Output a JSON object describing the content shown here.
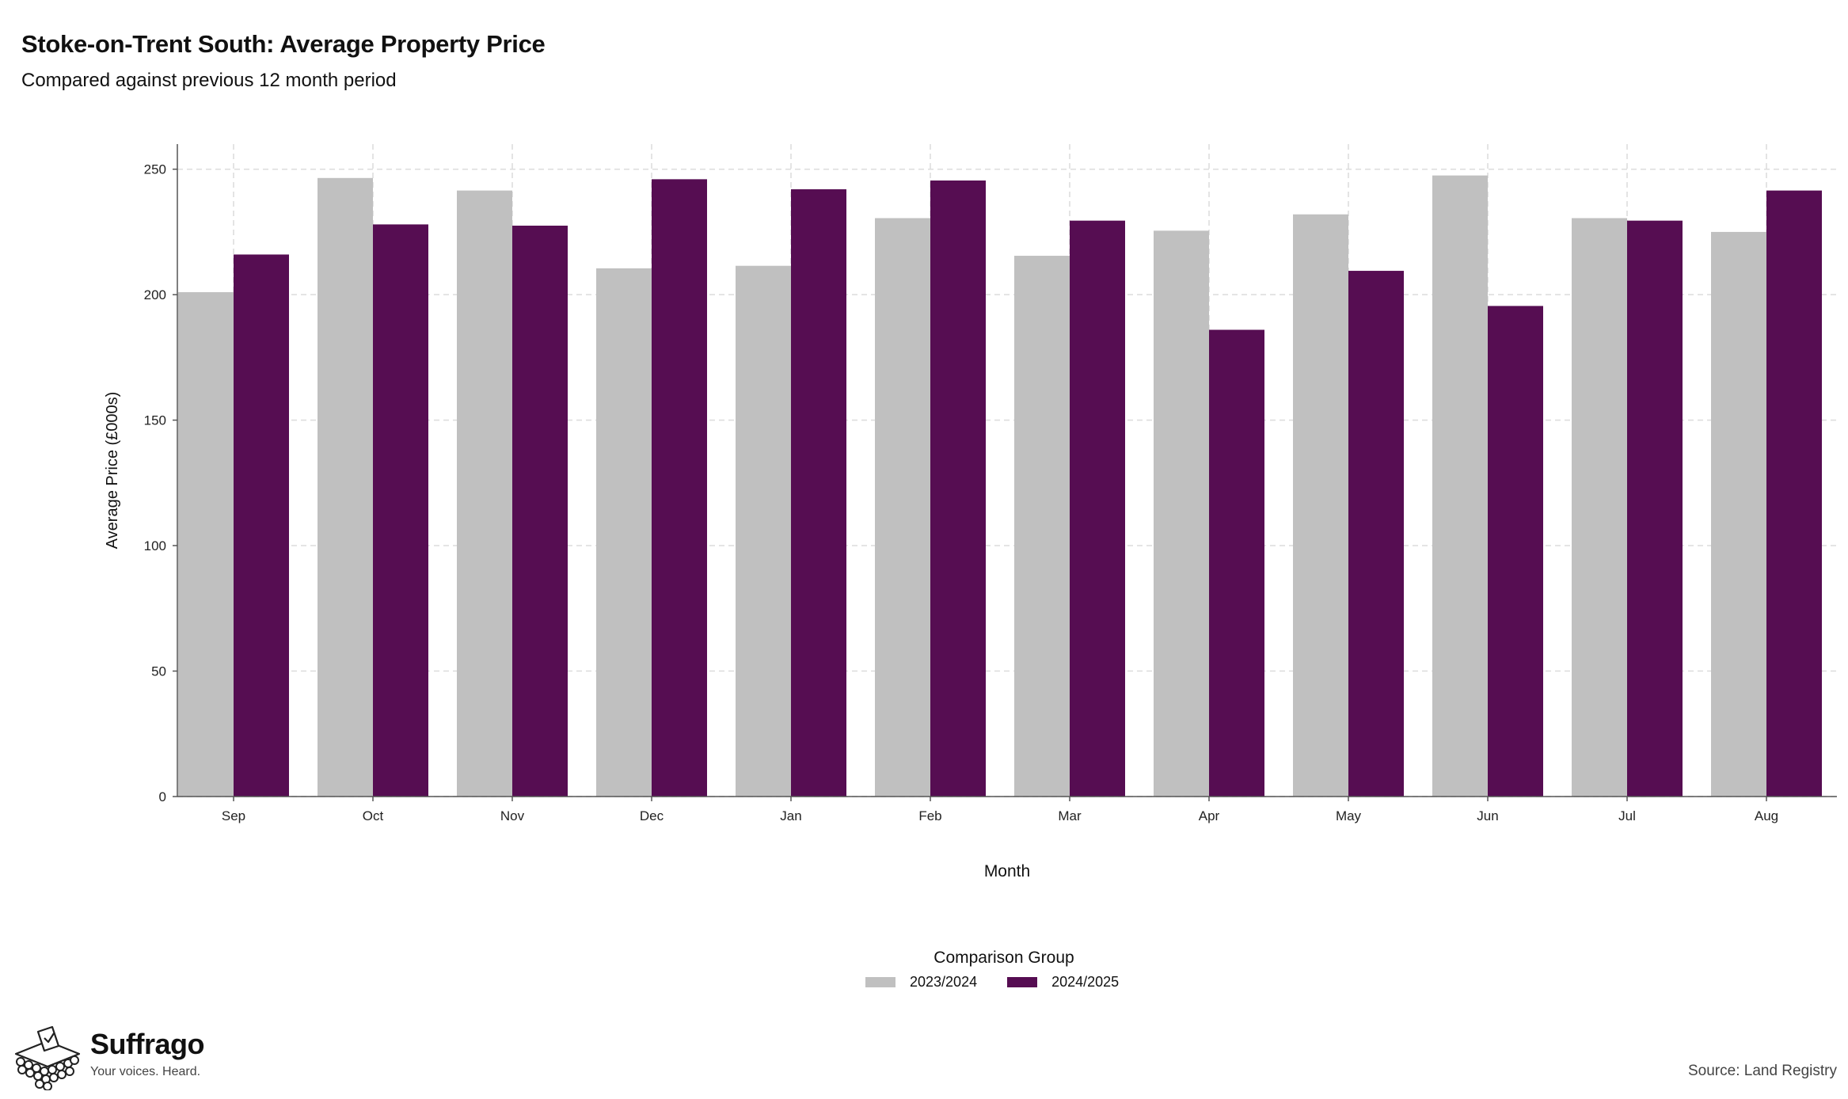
{
  "title": "Stoke-on-Trent South: Average Property Price",
  "subtitle": "Compared against previous 12 month period",
  "legend": {
    "title": "Comparison Group",
    "items": [
      {
        "label": "2023/2024",
        "color": "#c0c0c0"
      },
      {
        "label": "2024/2025",
        "color": "#560d52"
      }
    ]
  },
  "brand": {
    "name": "Suffrago",
    "tagline": "Your voices. Heard.",
    "icon": "ballot-box-icon"
  },
  "source": "Source: Land Registry",
  "chart_data": {
    "type": "bar",
    "xlabel": "Month",
    "ylabel": "Average Price (£000s)",
    "ylim": [
      0,
      260
    ],
    "yticks": [
      0,
      50,
      100,
      150,
      200,
      250
    ],
    "grid": true,
    "legend_position": "bottom",
    "categories": [
      "Sep",
      "Oct",
      "Nov",
      "Dec",
      "Jan",
      "Feb",
      "Mar",
      "Apr",
      "May",
      "Jun",
      "Jul",
      "Aug"
    ],
    "series": [
      {
        "name": "2023/2024",
        "color": "#c0c0c0",
        "values": [
          201,
          246.5,
          241.5,
          210.5,
          211.5,
          230.5,
          215.5,
          225.5,
          232,
          247.5,
          230.5,
          225
        ]
      },
      {
        "name": "2024/2025",
        "color": "#560d52",
        "values": [
          216,
          228,
          227.5,
          246,
          242,
          245.5,
          229.5,
          186,
          209.5,
          195.5,
          229.5,
          241.5
        ]
      }
    ]
  }
}
